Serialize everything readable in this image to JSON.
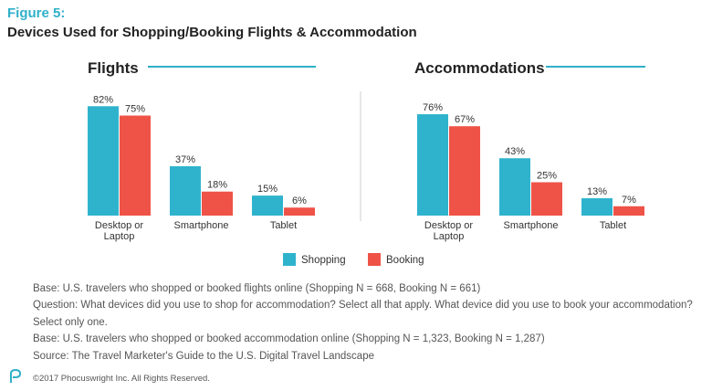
{
  "figure": {
    "label": "Figure 5:",
    "title": "Devices Used for Shopping/Booking Flights & Accommodation"
  },
  "colors": {
    "shopping": "#2fb3cd",
    "booking": "#ef5347",
    "accent": "#2fb0c9"
  },
  "legend": {
    "shopping": "Shopping",
    "booking": "Booking"
  },
  "chart_data": [
    {
      "type": "bar",
      "title": "Flights",
      "categories": [
        "Desktop or Laptop",
        "Smartphone",
        "Tablet"
      ],
      "category_lines": [
        [
          "Desktop or",
          "Laptop"
        ],
        [
          "Smartphone"
        ],
        [
          "Tablet"
        ]
      ],
      "series": [
        {
          "name": "Shopping",
          "values": [
            82,
            37,
            15
          ]
        },
        {
          "name": "Booking",
          "values": [
            75,
            18,
            6
          ]
        }
      ],
      "value_suffix": "%",
      "ylim": [
        0,
        100
      ],
      "legend": "bottom-center",
      "grid": false
    },
    {
      "type": "bar",
      "title": "Accommodations",
      "categories": [
        "Desktop or Laptop",
        "Smartphone",
        "Tablet"
      ],
      "category_lines": [
        [
          "Desktop or",
          "Laptop"
        ],
        [
          "Smartphone"
        ],
        [
          "Tablet"
        ]
      ],
      "series": [
        {
          "name": "Shopping",
          "values": [
            76,
            43,
            13
          ]
        },
        {
          "name": "Booking",
          "values": [
            67,
            25,
            7
          ]
        }
      ],
      "value_suffix": "%",
      "ylim": [
        0,
        100
      ],
      "legend": "bottom-center",
      "grid": false
    }
  ],
  "notes": [
    "Base: U.S. travelers who shopped or booked flights online (Shopping N = 668, Booking N = 661)",
    "Question: What devices did you use to shop for accommodation? Select all that apply. What device did you use to book your accommodation?",
    "Select only one.",
    "Base: U.S. travelers who shopped or booked accommodation online (Shopping N = 1,323, Booking N = 1,287)",
    "Source: The Travel Marketer's Guide to the U.S. Digital Travel Landscape"
  ],
  "footer": {
    "copyright": "©2017 Phocuswright Inc. All Rights Reserved.",
    "logo_icon": "phocuswright-logo-icon"
  }
}
